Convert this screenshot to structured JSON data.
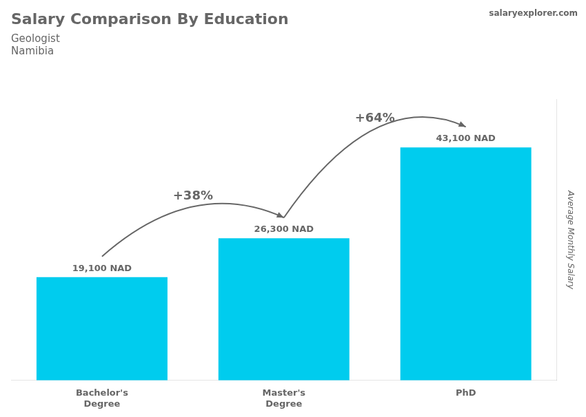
{
  "chart_data": {
    "type": "bar",
    "title": "Salary Comparison By Education",
    "subtitle": [
      "Geologist",
      "Namibia"
    ],
    "source": "salaryexplorer.com",
    "ylabel": "Average Monthly Salary",
    "categories": [
      "Bachelor's\nDegree",
      "Master's\nDegree",
      "PhD"
    ],
    "values": [
      19100,
      26300,
      43100
    ],
    "value_labels": [
      "19,100 NAD",
      "26,300 NAD",
      "43,100 NAD"
    ],
    "data_labels": true,
    "annotations": [
      "+38%",
      "+64%"
    ],
    "color": "#00ccee",
    "ylim": [
      0,
      52000
    ],
    "tick_labels": "x",
    "grid": false
  }
}
